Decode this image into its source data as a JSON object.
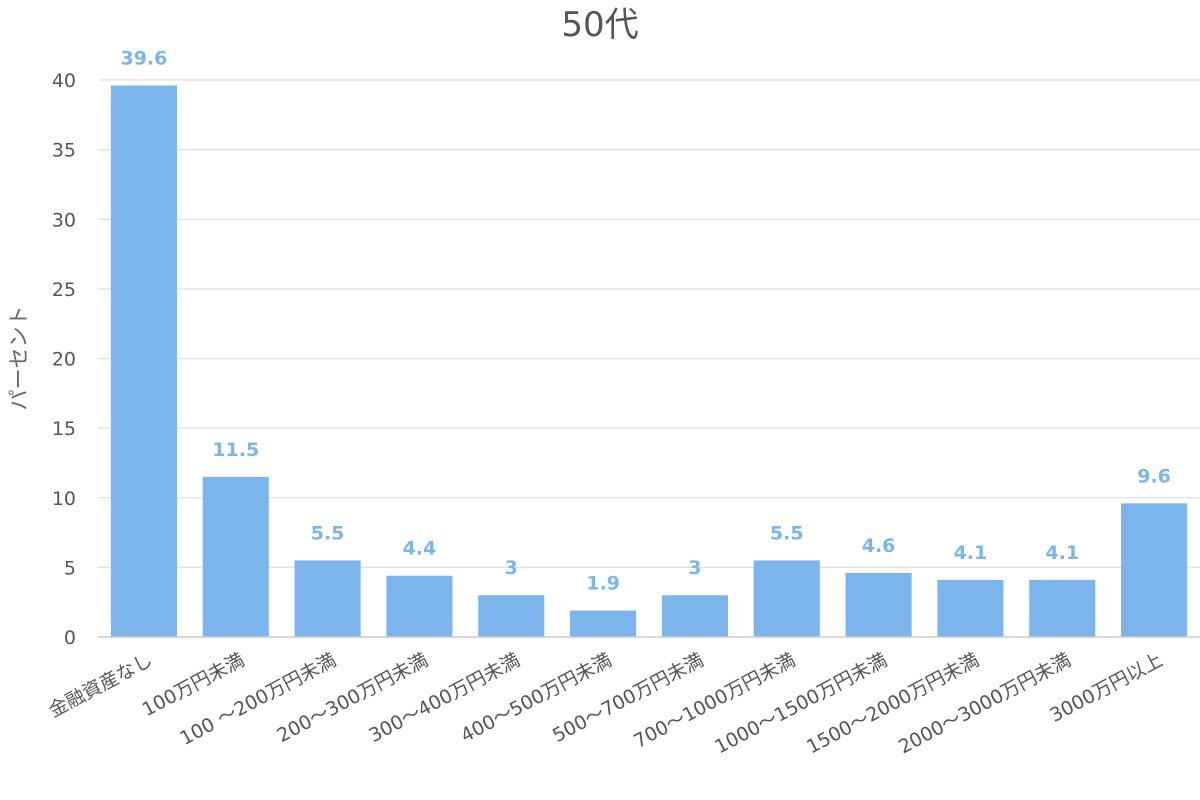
{
  "chart_data": {
    "type": "bar",
    "title": "50代",
    "xlabel": "",
    "ylabel": "パーセント",
    "ylim": [
      0,
      40
    ],
    "yticks": [
      0,
      5,
      10,
      15,
      20,
      25,
      30,
      35,
      40
    ],
    "categories": [
      "金融資産なし",
      "100万円未満",
      "100 〜200万円未満",
      "200〜300万円未満",
      "300〜400万円未満",
      "400〜500万円未満",
      "500〜700万円未満",
      "700〜1000万円未満",
      "1000〜1500万円未満",
      "1500〜2000万円未満",
      "2000〜3000万円未満",
      "3000万円以上"
    ],
    "values": [
      39.6,
      11.5,
      5.5,
      4.4,
      3,
      1.9,
      3,
      5.5,
      4.6,
      4.1,
      4.1,
      9.6
    ],
    "data_labels": [
      "39.6",
      "11.5",
      "5.5",
      "4.4",
      "3",
      "1.9",
      "3",
      "5.5",
      "4.6",
      "4.1",
      "4.1",
      "9.6"
    ],
    "grid": true,
    "legend": "none",
    "colors": {
      "bar": "#7cb5ec",
      "label": "#7cb5ec",
      "grid": "#e0e0e0",
      "text": "#555555"
    }
  }
}
